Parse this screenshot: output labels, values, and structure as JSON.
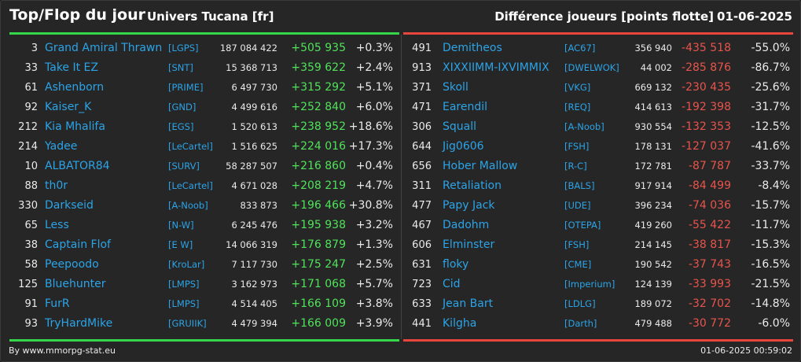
{
  "header": {
    "title": "Top/Flop du jour",
    "universe": "Univers Tucana [fr]",
    "diff_label": "Différence joueurs [points flotte]",
    "date": "01-06-2025"
  },
  "colors": {
    "top_accent": "#36d64a",
    "flop_accent": "#e8453c",
    "name_color": "#2ba4e8"
  },
  "top": [
    {
      "rank": "3",
      "name": "Grand Amiral Thrawn",
      "alliance": "[LGPS]",
      "points": "187 084 422",
      "diff": "+505 935",
      "pct": "+0.3%"
    },
    {
      "rank": "33",
      "name": "Take It EZ",
      "alliance": "[SNT]",
      "points": "15 368 713",
      "diff": "+359 622",
      "pct": "+2.4%"
    },
    {
      "rank": "61",
      "name": "Ashenborn",
      "alliance": "[PRIME]",
      "points": "6 497 730",
      "diff": "+315 292",
      "pct": "+5.1%"
    },
    {
      "rank": "92",
      "name": "Kaiser_K",
      "alliance": "[GND]",
      "points": "4 499 616",
      "diff": "+252 840",
      "pct": "+6.0%"
    },
    {
      "rank": "212",
      "name": "Kia Mhalifa",
      "alliance": "[EGS]",
      "points": "1 520 613",
      "diff": "+238 952",
      "pct": "+18.6%"
    },
    {
      "rank": "214",
      "name": "Yadee",
      "alliance": "[LeCartel]",
      "points": "1 516 625",
      "diff": "+224 016",
      "pct": "+17.3%"
    },
    {
      "rank": "10",
      "name": "ALBATOR84",
      "alliance": "[SURV]",
      "points": "58 287 507",
      "diff": "+216 860",
      "pct": "+0.4%"
    },
    {
      "rank": "88",
      "name": "th0r",
      "alliance": "[LeCartel]",
      "points": "4 671 028",
      "diff": "+208 219",
      "pct": "+4.7%"
    },
    {
      "rank": "330",
      "name": "Darkseid",
      "alliance": "[A-Noob]",
      "points": "833 873",
      "diff": "+196 466",
      "pct": "+30.8%"
    },
    {
      "rank": "65",
      "name": "Less",
      "alliance": "[N-W]",
      "points": "6 245 476",
      "diff": "+195 938",
      "pct": "+3.2%"
    },
    {
      "rank": "38",
      "name": "Captain Flof",
      "alliance": "[E W]",
      "points": "14 066 319",
      "diff": "+176 879",
      "pct": "+1.3%"
    },
    {
      "rank": "58",
      "name": "Peepoodo",
      "alliance": "[KroLar]",
      "points": "7 117 730",
      "diff": "+175 247",
      "pct": "+2.5%"
    },
    {
      "rank": "125",
      "name": "Bluehunter",
      "alliance": "[LMPS]",
      "points": "3 162 973",
      "diff": "+171 068",
      "pct": "+5.7%"
    },
    {
      "rank": "91",
      "name": "FurR",
      "alliance": "[LMPS]",
      "points": "4 514 405",
      "diff": "+166 109",
      "pct": "+3.8%"
    },
    {
      "rank": "93",
      "name": "TryHardMike",
      "alliance": "[GRUIIK]",
      "points": "4 479 394",
      "diff": "+166 009",
      "pct": "+3.9%"
    }
  ],
  "flop": [
    {
      "rank": "491",
      "name": "Demitheos",
      "alliance": "[AC67]",
      "points": "356 940",
      "diff": "-435 518",
      "pct": "-55.0%"
    },
    {
      "rank": "913",
      "name": "XIXXIIMM-IXVIMMIX",
      "alliance": "[DWELWOK]",
      "points": "44 002",
      "diff": "-285 876",
      "pct": "-86.7%"
    },
    {
      "rank": "371",
      "name": "Skoll",
      "alliance": "[VKG]",
      "points": "669 132",
      "diff": "-230 435",
      "pct": "-25.6%"
    },
    {
      "rank": "471",
      "name": "Earendil",
      "alliance": "[REQ]",
      "points": "414 613",
      "diff": "-192 398",
      "pct": "-31.7%"
    },
    {
      "rank": "306",
      "name": "Squall",
      "alliance": "[A-Noob]",
      "points": "930 554",
      "diff": "-132 353",
      "pct": "-12.5%"
    },
    {
      "rank": "644",
      "name": "Jig0606",
      "alliance": "[FSH]",
      "points": "178 131",
      "diff": "-127 037",
      "pct": "-41.6%"
    },
    {
      "rank": "656",
      "name": "Hober Mallow",
      "alliance": "[R-C]",
      "points": "172 781",
      "diff": "-87 787",
      "pct": "-33.7%"
    },
    {
      "rank": "311",
      "name": "Retaliation",
      "alliance": "[BALS]",
      "points": "917 914",
      "diff": "-84 499",
      "pct": "-8.4%"
    },
    {
      "rank": "477",
      "name": "Papy Jack",
      "alliance": "[UDE]",
      "points": "396 234",
      "diff": "-74 036",
      "pct": "-15.7%"
    },
    {
      "rank": "467",
      "name": "Dadohm",
      "alliance": "[OTEPA]",
      "points": "419 260",
      "diff": "-55 422",
      "pct": "-11.7%"
    },
    {
      "rank": "606",
      "name": "Elminster",
      "alliance": "[FSH]",
      "points": "214 145",
      "diff": "-38 817",
      "pct": "-15.3%"
    },
    {
      "rank": "631",
      "name": "floky",
      "alliance": "[CME]",
      "points": "190 542",
      "diff": "-37 743",
      "pct": "-16.5%"
    },
    {
      "rank": "723",
      "name": "Cid",
      "alliance": "[Imperium]",
      "points": "124 139",
      "diff": "-33 993",
      "pct": "-21.5%"
    },
    {
      "rank": "633",
      "name": "Jean Bart",
      "alliance": "[LDLG]",
      "points": "189 072",
      "diff": "-32 702",
      "pct": "-14.8%"
    },
    {
      "rank": "441",
      "name": "Kilgha",
      "alliance": "[Darth]",
      "points": "479 488",
      "diff": "-30 772",
      "pct": "-6.0%"
    }
  ],
  "footer": {
    "source": "By www.mmorpg-stat.eu",
    "timestamp": "01-06-2025 00:59:02"
  }
}
